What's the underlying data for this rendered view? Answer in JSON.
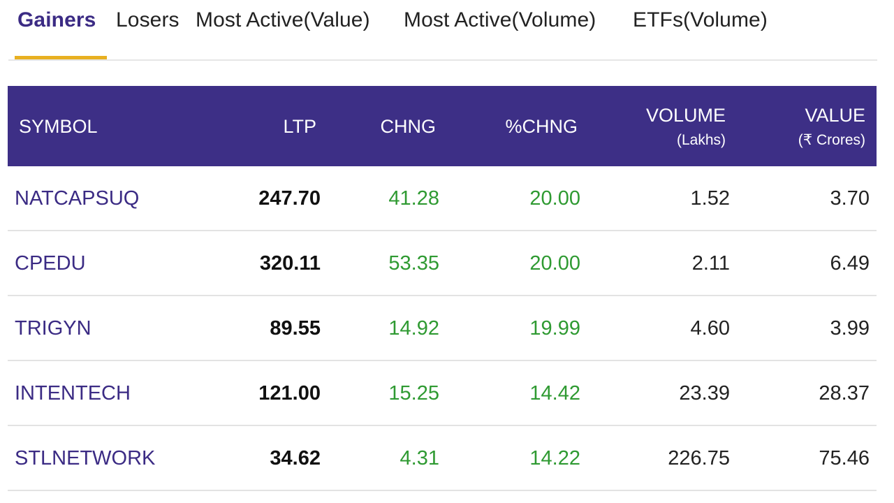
{
  "tabs": [
    {
      "label": "Gainers",
      "active": true
    },
    {
      "label": "Losers",
      "active": false
    },
    {
      "label": "Most Active(Value)",
      "active": false
    },
    {
      "label": "Most Active(Volume)",
      "active": false
    },
    {
      "label": "ETFs(Volume)",
      "active": false
    }
  ],
  "colors": {
    "header_bg": "#3d2f86",
    "active_tab": "#3b2b84",
    "tab_underline": "#e8b021",
    "positive": "#2f9a32",
    "symbol": "#3b2b84"
  },
  "table": {
    "headers": {
      "symbol": "SYMBOL",
      "ltp": "LTP",
      "chng": "CHNG",
      "pchng": "%CHNG",
      "volume": "VOLUME",
      "volume_unit": "(Lakhs)",
      "value": "VALUE",
      "value_unit": "(₹ Crores)"
    },
    "rows": [
      {
        "symbol": "NATCAPSUQ",
        "ltp": "247.70",
        "chng": "41.28",
        "pchng": "20.00",
        "volume": "1.52",
        "value": "3.70"
      },
      {
        "symbol": "CPEDU",
        "ltp": "320.11",
        "chng": "53.35",
        "pchng": "20.00",
        "volume": "2.11",
        "value": "6.49"
      },
      {
        "symbol": "TRIGYN",
        "ltp": "89.55",
        "chng": "14.92",
        "pchng": "19.99",
        "volume": "4.60",
        "value": "3.99"
      },
      {
        "symbol": "INTENTECH",
        "ltp": "121.00",
        "chng": "15.25",
        "pchng": "14.42",
        "volume": "23.39",
        "value": "28.37"
      },
      {
        "symbol": "STLNETWORK",
        "ltp": "34.62",
        "chng": "4.31",
        "pchng": "14.22",
        "volume": "226.75",
        "value": "75.46"
      }
    ]
  }
}
